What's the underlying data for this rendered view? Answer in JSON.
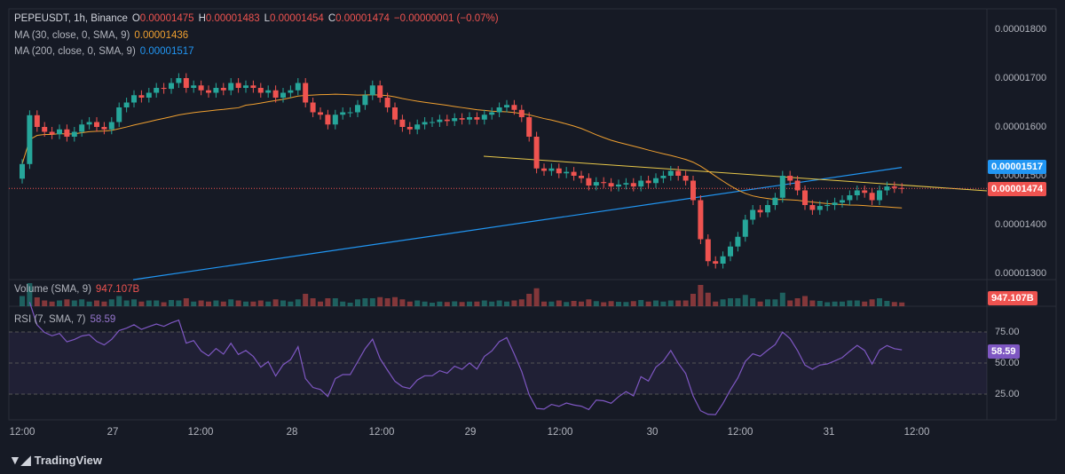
{
  "header": {
    "symbol": "PEPEUSDT, 1h, Binance",
    "o_label": "O",
    "open": "0.00001475",
    "h_label": "H",
    "high": "0.00001483",
    "l_label": "L",
    "low": "0.00001454",
    "c_label": "C",
    "close": "0.00001474",
    "change": "−0.00000001 (−0.07%)"
  },
  "indicators": {
    "ma30_label": "MA (30, close, 0, SMA, 9)",
    "ma30_value": "0.00001436",
    "ma200_label": "MA (200, close, 0, SMA, 9)",
    "ma200_value": "0.00001517",
    "volume_label": "Volume (SMA, 9)",
    "volume_value": "947.107B",
    "rsi_label": "RSI (7, SMA, 7)",
    "rsi_value": "58.59"
  },
  "price_axis": [
    "0.00001800",
    "0.00001700",
    "0.00001600",
    "0.00001500",
    "0.00001400",
    "0.00001300"
  ],
  "price_tags": {
    "ma200": "0.00001517",
    "last": "0.00001474",
    "volume": "947.107B",
    "rsi": "58.59"
  },
  "rsi_axis": [
    "75.00",
    "50.00",
    "25.00"
  ],
  "time_axis": [
    "12:00",
    "27",
    "12:00",
    "28",
    "12:00",
    "29",
    "12:00",
    "30",
    "12:00",
    "31",
    "12:00"
  ],
  "brand": "TradingView",
  "colors": {
    "up": "#26a69a",
    "down": "#ef5350",
    "ma30": "#f0a030",
    "ma200": "#2196f3",
    "rsi": "#7e57c2",
    "trendline": "#e8c84a",
    "background": "#161a25"
  },
  "chart_data": {
    "type": "candlestick",
    "price_range": [
      1.27e-05,
      1.84e-05
    ],
    "closes": [
      1.524e-05,
      1.624e-05,
      1.6e-05,
      1.59e-05,
      1.585e-05,
      1.595e-05,
      1.58e-05,
      1.59e-05,
      1.605e-05,
      1.61e-05,
      1.6e-05,
      1.595e-05,
      1.61e-05,
      1.64e-05,
      1.65e-05,
      1.665e-05,
      1.66e-05,
      1.67e-05,
      1.68e-05,
      1.678e-05,
      1.69e-05,
      1.7e-05,
      1.68e-05,
      1.685e-05,
      1.675e-05,
      1.67e-05,
      1.68e-05,
      1.675e-05,
      1.69e-05,
      1.68e-05,
      1.685e-05,
      1.68e-05,
      1.67e-05,
      1.675e-05,
      1.66e-05,
      1.67e-05,
      1.675e-05,
      1.69e-05,
      1.65e-05,
      1.63e-05,
      1.625e-05,
      1.605e-05,
      1.625e-05,
      1.63e-05,
      1.63e-05,
      1.645e-05,
      1.665e-05,
      1.685e-05,
      1.66e-05,
      1.64e-05,
      1.615e-05,
      1.6e-05,
      1.595e-05,
      1.605e-05,
      1.61e-05,
      1.61e-05,
      1.615e-05,
      1.612e-05,
      1.618e-05,
      1.615e-05,
      1.62e-05,
      1.615e-05,
      1.625e-05,
      1.63e-05,
      1.64e-05,
      1.645e-05,
      1.635e-05,
      1.62e-05,
      1.58e-05,
      1.515e-05,
      1.51e-05,
      1.515e-05,
      1.505e-05,
      1.508e-05,
      1.5e-05,
      1.495e-05,
      1.48e-05,
      1.487e-05,
      1.485e-05,
      1.478e-05,
      1.482e-05,
      1.485e-05,
      1.478e-05,
      1.49e-05,
      1.485e-05,
      1.495e-05,
      1.5e-05,
      1.51e-05,
      1.5e-05,
      1.49e-05,
      1.45e-05,
      1.37e-05,
      1.325e-05,
      1.32e-05,
      1.335e-05,
      1.355e-05,
      1.375e-05,
      1.41e-05,
      1.43e-05,
      1.425e-05,
      1.44e-05,
      1.455e-05,
      1.5e-05,
      1.49e-05,
      1.47e-05,
      1.44e-05,
      1.43e-05,
      1.438e-05,
      1.44e-05,
      1.445e-05,
      1.45e-05,
      1.46e-05,
      1.47e-05,
      1.465e-05,
      1.45e-05,
      1.47e-05,
      1.478e-05,
      1.475e-05,
      1.474e-05
    ],
    "ma200_line": [
      1.287e-05,
      1.517e-05
    ],
    "trendline": [
      1.54e-05,
      1.469e-05
    ],
    "rsi_levels": [
      75,
      50,
      25
    ]
  }
}
